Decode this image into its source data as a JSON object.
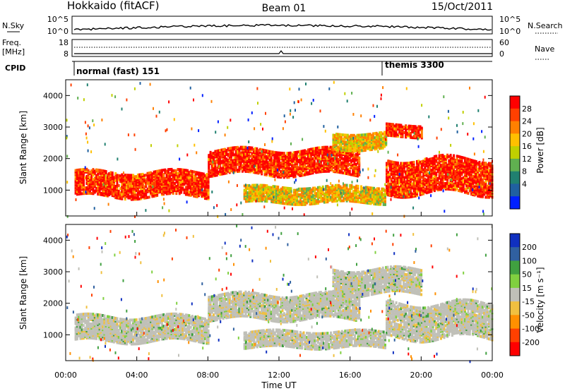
{
  "header": {
    "station": "Hokkaido (fitACF)",
    "beam": "Beam 01",
    "date": "15/Oct/2011"
  },
  "panels": {
    "nsky": {
      "left_label": "N.Sky",
      "right_label": "N.Search",
      "left_ticks": [
        "10^5",
        "10^0"
      ],
      "right_ticks": [
        "10^5",
        "10^0"
      ]
    },
    "freq": {
      "left_label_1": "Freq.",
      "left_label_2": "[MHz]",
      "right_label": "Nave",
      "left_ticks": [
        "18",
        "8"
      ],
      "right_ticks": [
        "60",
        "0"
      ]
    },
    "cpid": {
      "label": "CPID",
      "segments": [
        "normal (fast) 151",
        "themis 3300"
      ]
    }
  },
  "chart_data": [
    {
      "type": "heatmap",
      "name": "power",
      "ylabel": "Slant Range [km]",
      "xlabel": "",
      "xlim_hours": [
        0,
        24
      ],
      "ylim_km": [
        180,
        4500
      ],
      "y_ticks": [
        "1000",
        "2000",
        "3000",
        "4000"
      ],
      "colorbar_label": "Power [dB]",
      "colorbar_ticks": [
        "28",
        "24",
        "20",
        "16",
        "12",
        "8",
        "4"
      ],
      "colorbar_colors": [
        "#ff0000",
        "#ff4000",
        "#ff8000",
        "#ffc000",
        "#c0d000",
        "#60b050",
        "#208070",
        "#2060a0",
        "#0020ff"
      ],
      "features": [
        {
          "from_h": 0.5,
          "to_h": 8.0,
          "range_km": [
            800,
            1600
          ],
          "level": "high"
        },
        {
          "from_h": 8.0,
          "to_h": 16.5,
          "range_km": [
            1500,
            2300
          ],
          "level": "high"
        },
        {
          "from_h": 15.0,
          "to_h": 18.0,
          "range_km": [
            2300,
            2800
          ],
          "level": "mid"
        },
        {
          "from_h": 18.0,
          "to_h": 20.0,
          "range_km": [
            2700,
            3100
          ],
          "level": "high"
        },
        {
          "from_h": 18.0,
          "to_h": 24.0,
          "range_km": [
            900,
            2000
          ],
          "level": "high"
        },
        {
          "from_h": 10.0,
          "to_h": 18.0,
          "range_km": [
            600,
            1100
          ],
          "level": "mid"
        }
      ]
    },
    {
      "type": "heatmap",
      "name": "velocity",
      "ylabel": "Slant Range [km]",
      "xlabel": "Time UT",
      "xlim_hours": [
        0,
        24
      ],
      "ylim_km": [
        180,
        4500
      ],
      "x_ticks": [
        "00:00",
        "04:00",
        "08:00",
        "12:00",
        "16:00",
        "20:00",
        "00:00"
      ],
      "y_ticks": [
        "1000",
        "2000",
        "3000",
        "4000"
      ],
      "colorbar_label": "Velocity [m s⁻¹]",
      "colorbar_ticks": [
        "200",
        "100",
        "50",
        "15",
        "-15",
        "-50",
        "-100",
        "-200"
      ],
      "colorbar_colors": [
        "#1030c0",
        "#3060a0",
        "#40a040",
        "#80d040",
        "#c0c0b8",
        "#f0c040",
        "#ff9000",
        "#ff4000",
        "#ff0000"
      ],
      "features": [
        {
          "from_h": 0.5,
          "to_h": 8.0,
          "range_km": [
            800,
            1600
          ],
          "level": "ground"
        },
        {
          "from_h": 8.0,
          "to_h": 16.5,
          "range_km": [
            1500,
            2300
          ],
          "level": "ground"
        },
        {
          "from_h": 15.0,
          "to_h": 20.0,
          "range_km": [
            2300,
            3100
          ],
          "level": "ground"
        },
        {
          "from_h": 18.0,
          "to_h": 24.0,
          "range_km": [
            900,
            2000
          ],
          "level": "ground"
        },
        {
          "from_h": 10.0,
          "to_h": 18.0,
          "range_km": [
            600,
            1100
          ],
          "level": "ground"
        }
      ]
    }
  ]
}
